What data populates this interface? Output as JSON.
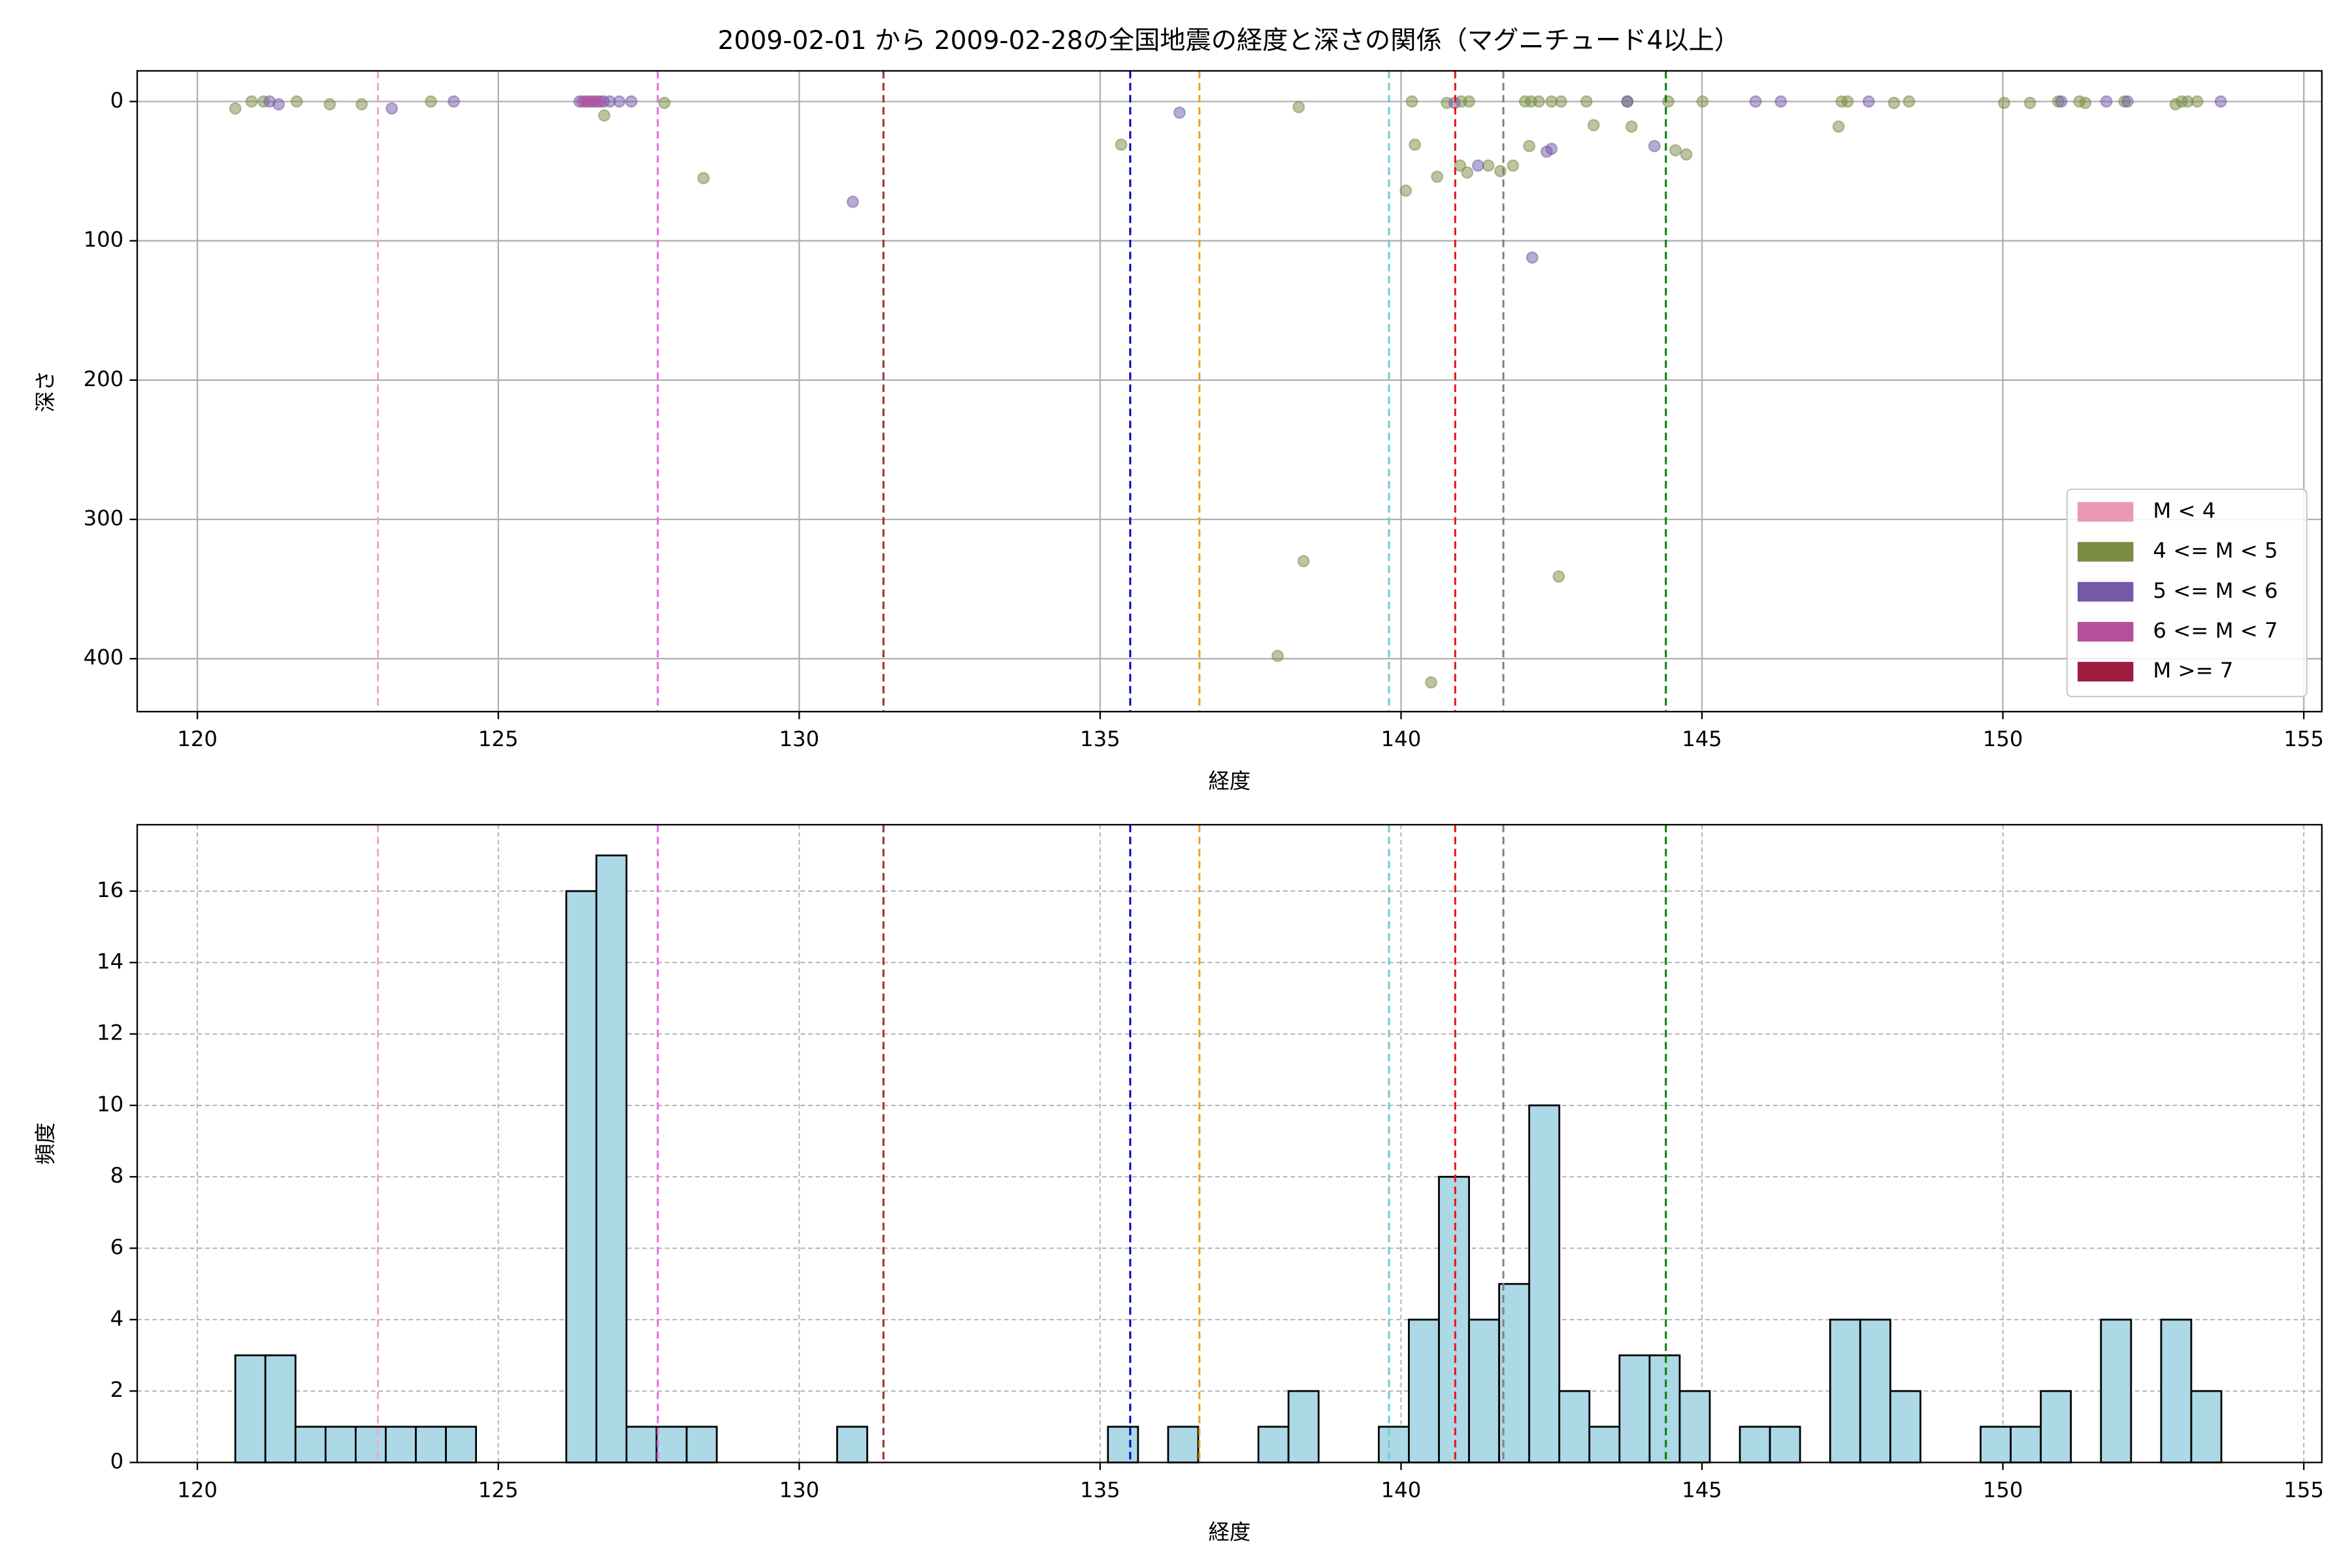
{
  "chart_data": [
    {
      "type": "scatter",
      "title": "2009-02-01 から 2009-02-28の全国地震の経度と深さの関係（マグニチュード4以上）",
      "xlabel": "経度",
      "ylabel": "深さ",
      "xlim": [
        119.0,
        155.3
      ],
      "ylim": [
        438,
        -22
      ],
      "xticks": [
        120,
        125,
        130,
        135,
        140,
        145,
        150,
        155
      ],
      "yticks": [
        0,
        100,
        200,
        300,
        400
      ],
      "grid": true,
      "legend": "lower right",
      "alpha": 0.5,
      "vlines": [
        {
          "x": 123.0,
          "color": "#f4a6c0"
        },
        {
          "x": 127.65,
          "color": "#e86be0"
        },
        {
          "x": 131.4,
          "color": "#a52a2a"
        },
        {
          "x": 135.5,
          "color": "#0000cc"
        },
        {
          "x": 136.65,
          "color": "#f0a020"
        },
        {
          "x": 139.8,
          "color": "#70cccc"
        },
        {
          "x": 140.9,
          "color": "#ee1111"
        },
        {
          "x": 141.7,
          "color": "#808080"
        },
        {
          "x": 144.4,
          "color": "#008000"
        }
      ],
      "series": [
        {
          "name": "M < 4",
          "color": "#e799b4",
          "x": [],
          "values": []
        },
        {
          "name": "4 <= M < 5",
          "color": "#7a8c44",
          "x": [
            120.63,
            120.9,
            121.1,
            121.65,
            122.2,
            122.73,
            123.88,
            126.76,
            127.76,
            128.41,
            135.35,
            138.3,
            137.95,
            138.38,
            140.08,
            140.18,
            140.23,
            140.5,
            140.6,
            140.76,
            140.98,
            141.1,
            141.0,
            141.13,
            141.45,
            141.65,
            141.86,
            142.06,
            142.16,
            142.13,
            142.29,
            142.5,
            142.66,
            142.62,
            143.08,
            143.2,
            143.76,
            143.83,
            144.44,
            144.56,
            144.74,
            145.01,
            147.27,
            147.32,
            147.42,
            148.19,
            148.44,
            150.02,
            150.45,
            150.92,
            151.27,
            151.37,
            152.02,
            152.87,
            152.97,
            153.07,
            153.23
          ],
          "values": [
            5,
            0,
            0,
            0,
            2,
            2,
            0,
            10,
            1,
            55,
            31,
            4,
            398,
            330,
            64,
            0,
            31,
            417,
            54,
            1,
            46,
            51,
            0,
            0,
            46,
            50,
            46,
            0,
            0,
            32,
            0,
            0,
            0,
            341,
            0,
            17,
            0,
            18,
            0,
            35,
            38,
            0,
            18,
            0,
            0,
            1,
            0,
            1,
            1,
            0,
            0,
            1,
            0,
            2,
            0,
            0,
            0
          ]
        },
        {
          "name": "5 <= M < 6",
          "color": "#7359a6",
          "x": [
            121.2,
            121.35,
            123.23,
            124.26,
            126.35,
            126.45,
            126.55,
            126.65,
            126.75,
            126.85,
            127.01,
            127.21,
            130.89,
            136.32,
            140.89,
            141.28,
            142.18,
            142.42,
            142.5,
            143.76,
            144.21,
            145.89,
            146.31,
            147.77,
            150.97,
            151.72,
            152.07,
            153.62
          ],
          "values": [
            0,
            2,
            5,
            0,
            0,
            0,
            0,
            0,
            0,
            0,
            0,
            0,
            72,
            8,
            1,
            46,
            112,
            36,
            34,
            0,
            32,
            0,
            0,
            0,
            0,
            0,
            0,
            0
          ]
        },
        {
          "name": "6 <= M < 7",
          "color": "#b44f9e",
          "x": [
            126.4,
            126.5,
            126.6,
            126.7
          ],
          "values": [
            0,
            0,
            0,
            0
          ]
        },
        {
          "name": "M >= 7",
          "color": "#a01c3e",
          "x": [],
          "values": []
        }
      ]
    },
    {
      "type": "histogram",
      "xlabel": "経度",
      "ylabel": "頻度",
      "xlim": [
        119.0,
        155.3
      ],
      "ylim": [
        0,
        17.86
      ],
      "xticks": [
        120,
        125,
        130,
        135,
        140,
        145,
        150,
        155
      ],
      "yticks": [
        0,
        2,
        4,
        6,
        8,
        10,
        12,
        14,
        16
      ],
      "grid": true,
      "color": "#add8e6",
      "vlines": [
        {
          "x": 123.0,
          "color": "#f4a6c0"
        },
        {
          "x": 127.65,
          "color": "#e86be0"
        },
        {
          "x": 131.4,
          "color": "#a52a2a"
        },
        {
          "x": 135.5,
          "color": "#0000cc"
        },
        {
          "x": 136.65,
          "color": "#f0a020"
        },
        {
          "x": 139.8,
          "color": "#70cccc"
        },
        {
          "x": 140.9,
          "color": "#ee1111"
        },
        {
          "x": 141.7,
          "color": "#808080"
        },
        {
          "x": 144.4,
          "color": "#008000"
        }
      ],
      "bins": [
        120.63,
        121.13,
        121.63,
        122.13,
        122.63,
        123.13,
        123.63,
        124.13,
        124.63,
        125.13,
        125.63,
        126.13,
        126.63,
        127.13,
        127.63,
        128.13,
        128.63,
        129.13,
        129.63,
        130.13,
        130.63,
        131.13,
        131.63,
        132.13,
        132.63,
        133.13,
        133.63,
        134.13,
        134.63,
        135.13,
        135.63,
        136.13,
        136.63,
        137.13,
        137.63,
        138.13,
        138.63,
        139.13,
        139.63,
        140.13,
        140.63,
        141.13,
        141.63,
        142.13,
        142.63,
        143.13,
        143.63,
        144.13,
        144.63,
        145.13,
        145.63,
        146.13,
        146.63,
        147.13,
        147.63,
        148.13,
        148.63,
        149.13,
        149.63,
        150.13,
        150.63,
        151.13,
        151.63,
        152.13,
        152.63,
        153.13,
        153.63
      ],
      "values": [
        3,
        3,
        1,
        1,
        1,
        1,
        1,
        1,
        0,
        0,
        0,
        16,
        17,
        1,
        1,
        1,
        0,
        0,
        0,
        0,
        1,
        0,
        0,
        0,
        0,
        0,
        0,
        0,
        0,
        1,
        0,
        1,
        0,
        0,
        1,
        2,
        0,
        0,
        1,
        4,
        8,
        4,
        5,
        10,
        2,
        1,
        3,
        3,
        2,
        0,
        1,
        1,
        0,
        4,
        4,
        2,
        0,
        0,
        1,
        1,
        2,
        0,
        4,
        0,
        4,
        2
      ]
    }
  ]
}
